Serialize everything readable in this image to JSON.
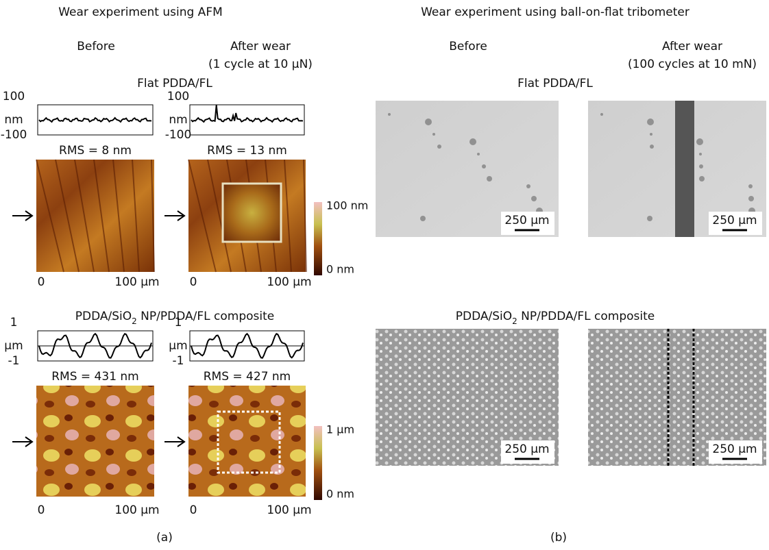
{
  "panel_a": {
    "heading": "Wear experiment using AFM",
    "columns": [
      {
        "title": "Before"
      },
      {
        "title": "After wear",
        "subtitle": "(1 cycle at 10 µN)"
      }
    ],
    "rows": [
      {
        "label_parts": [
          "Flat PDDA/FL"
        ],
        "profile_axis": {
          "top": "100",
          "unit": "nm",
          "bottom": "-100"
        },
        "rms": [
          "RMS = 8 nm",
          "RMS = 13 nm"
        ],
        "x_axis": {
          "start": "0",
          "end": "100 µm"
        },
        "colorbar": {
          "top": "100 nm",
          "bottom": "0 nm"
        }
      },
      {
        "label_parts": [
          "PDDA/SiO",
          "2",
          " NP/PDDA/FL composite"
        ],
        "profile_axis": {
          "top": "1",
          "unit": "µm",
          "bottom": "-1"
        },
        "rms": [
          "RMS = 431 nm",
          "RMS = 427 nm"
        ],
        "x_axis": {
          "start": "0",
          "end": "100 µm"
        },
        "colorbar": {
          "top": "1 µm",
          "bottom": "0 nm"
        }
      }
    ],
    "caption": "(a)"
  },
  "panel_b": {
    "heading": "Wear experiment using ball-on-flat tribometer",
    "columns": [
      {
        "title": "Before"
      },
      {
        "title": "After wear",
        "subtitle": "(100 cycles at 10 mN)"
      }
    ],
    "rows": [
      {
        "label_parts": [
          "Flat PDDA/FL"
        ],
        "scale_bars": [
          "250 µm",
          "250 µm"
        ]
      },
      {
        "label_parts": [
          "PDDA/SiO",
          "2",
          " NP/PDDA/FL composite"
        ],
        "scale_bars": [
          "250 µm",
          "250 µm"
        ]
      }
    ],
    "caption": "(b)"
  }
}
